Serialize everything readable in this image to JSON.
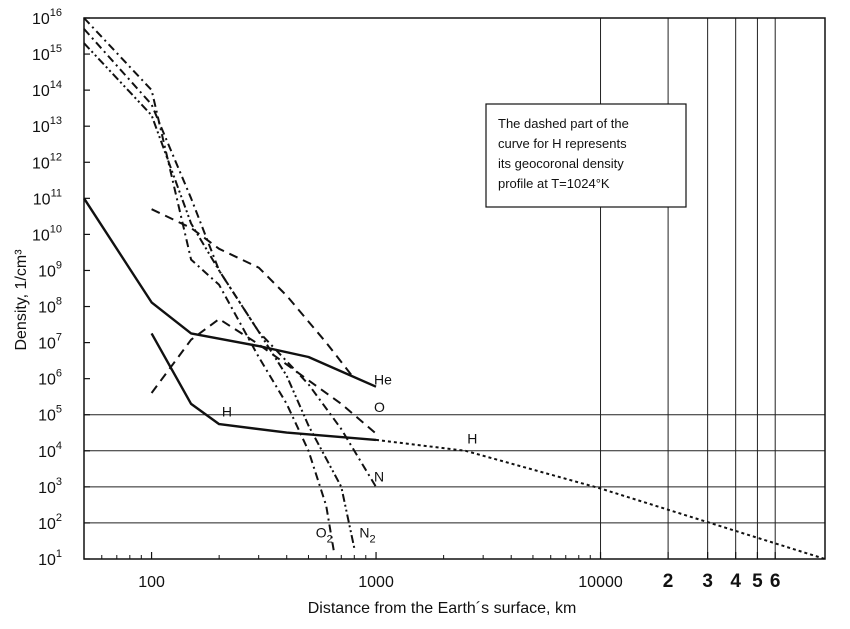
{
  "chart_data": {
    "type": "line",
    "xlabel": "Distance from the Earth´s surface, km",
    "ylabel": "Density, 1/cm³",
    "x_scale": "log",
    "y_scale": "log",
    "xlim": [
      50,
      100000
    ],
    "ylim": [
      10,
      10000000000000000
    ],
    "x_ticks": [
      {
        "value": 100,
        "label": "100"
      },
      {
        "value": 1000,
        "label": "1000"
      },
      {
        "value": 10000,
        "label": "10000"
      },
      {
        "value": 20000,
        "label": "2"
      },
      {
        "value": 30000,
        "label": "3"
      },
      {
        "value": 40000,
        "label": "4"
      },
      {
        "value": 50000,
        "label": "5"
      },
      {
        "value": 60000,
        "label": "6"
      }
    ],
    "y_ticks": [
      {
        "value": 10,
        "base": "10",
        "exp": "1"
      },
      {
        "value": 100,
        "base": "10",
        "exp": "2"
      },
      {
        "value": 1000,
        "base": "10",
        "exp": "3"
      },
      {
        "value": 10000,
        "base": "10",
        "exp": "4"
      },
      {
        "value": 100000,
        "base": "10",
        "exp": "5"
      },
      {
        "value": 1000000,
        "base": "10",
        "exp": "6"
      },
      {
        "value": 10000000,
        "base": "10",
        "exp": "7"
      },
      {
        "value": 100000000,
        "base": "10",
        "exp": "8"
      },
      {
        "value": 1000000000,
        "base": "10",
        "exp": "9"
      },
      {
        "value": 10000000000,
        "base": "10",
        "exp": "10"
      },
      {
        "value": 100000000000,
        "base": "10",
        "exp": "11"
      },
      {
        "value": 1000000000000,
        "base": "10",
        "exp": "12"
      },
      {
        "value": 10000000000000,
        "base": "10",
        "exp": "13"
      },
      {
        "value": 100000000000000,
        "base": "10",
        "exp": "14"
      },
      {
        "value": 1000000000000000,
        "base": "10",
        "exp": "15"
      },
      {
        "value": 10000000000000000,
        "base": "10",
        "exp": "16"
      }
    ],
    "grid": "partial",
    "annotation_lines": [
      "The dashed part of the",
      "curve for H represents",
      "its geocoronal density",
      "profile at T=1024°K"
    ],
    "series": [
      {
        "name": "H",
        "style": "solid",
        "points": [
          [
            100,
            18000000
          ],
          [
            150,
            200000
          ],
          [
            200,
            55000
          ],
          [
            400,
            32000
          ],
          [
            1000,
            20000
          ]
        ]
      },
      {
        "name": "H",
        "style": "dotted",
        "points": [
          [
            1000,
            20000
          ],
          [
            2500,
            10000
          ],
          [
            10000,
            900
          ],
          [
            100000,
            10
          ]
        ]
      },
      {
        "name": "He",
        "style": "solid",
        "points": [
          [
            50,
            100000000000
          ],
          [
            100,
            130000000
          ],
          [
            150,
            18000000
          ],
          [
            300,
            8000000
          ],
          [
            500,
            4000000
          ],
          [
            1000,
            600000
          ]
        ]
      },
      {
        "name": "O",
        "style": "dashed",
        "points": [
          [
            100,
            400000
          ],
          [
            150,
            12000000
          ],
          [
            200,
            45000000
          ],
          [
            300,
            9000000
          ],
          [
            500,
            900000
          ],
          [
            700,
            200000
          ],
          [
            1000,
            30000
          ]
        ]
      },
      {
        "name": "N",
        "style": "dashdot",
        "points": [
          [
            50,
            5000000000000000
          ],
          [
            100,
            40000000000000
          ],
          [
            150,
            100000000000
          ],
          [
            200,
            1000000000
          ],
          [
            300,
            20000000
          ],
          [
            500,
            700000
          ],
          [
            700,
            40000
          ],
          [
            1000,
            1000
          ]
        ]
      },
      {
        "name": "",
        "style": "dashed",
        "points": [
          [
            100,
            50000000000
          ],
          [
            150,
            15000000000
          ],
          [
            200,
            4000000000
          ],
          [
            300,
            1200000000
          ],
          [
            400,
            200000000
          ],
          [
            600,
            10000000
          ],
          [
            800,
            1000000
          ]
        ]
      },
      {
        "name": "O₂",
        "style": "dashdot",
        "points": [
          [
            50,
            10000000000000000
          ],
          [
            100,
            100000000000000
          ],
          [
            150,
            2000000000
          ],
          [
            200,
            400000000
          ],
          [
            300,
            4000000
          ],
          [
            400,
            200000
          ],
          [
            500,
            10000
          ],
          [
            600,
            300
          ],
          [
            650,
            15
          ]
        ]
      },
      {
        "name": "N₂",
        "style": "dashdotdot",
        "points": [
          [
            50,
            2000000000000000
          ],
          [
            100,
            20000000000000
          ],
          [
            150,
            20000000000
          ],
          [
            200,
            1000000000
          ],
          [
            300,
            20000000
          ],
          [
            400,
            1200000
          ],
          [
            500,
            50000
          ],
          [
            700,
            1000
          ],
          [
            800,
            20
          ]
        ]
      }
    ],
    "curve_labels": [
      {
        "text": "He",
        "x": 1000,
        "y": 700000,
        "sub": ""
      },
      {
        "text": "O",
        "x": 1000,
        "y": 120000,
        "sub": ""
      },
      {
        "text": "H",
        "x": 210,
        "y": 90000,
        "sub": ""
      },
      {
        "text": "H",
        "x": 2600,
        "y": 16000,
        "sub": ""
      },
      {
        "text": "N",
        "x": 1000,
        "y": 1400,
        "sub": ""
      },
      {
        "text": "O",
        "x": 550,
        "y": 40,
        "sub": "2"
      },
      {
        "text": "N",
        "x": 860,
        "y": 40,
        "sub": "2"
      }
    ]
  }
}
